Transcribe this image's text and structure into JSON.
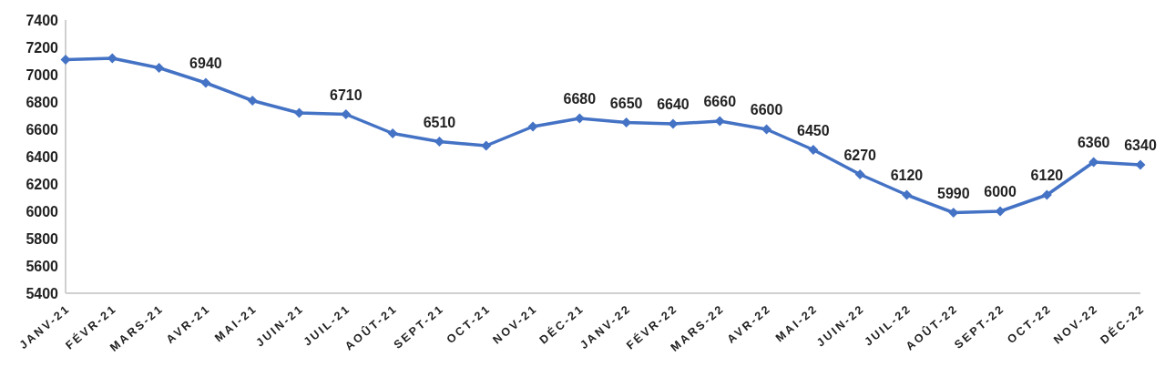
{
  "chart_data": {
    "type": "line",
    "categories": [
      "JANV-21",
      "FÉVR-21",
      "MARS-21",
      "AVR-21",
      "MAI-21",
      "JUIN-21",
      "JUIL-21",
      "AOÛT-21",
      "SEPT-21",
      "OCT-21",
      "NOV-21",
      "DÉC-21",
      "JANV-22",
      "FÉVR-22",
      "MARS-22",
      "AVR-22",
      "MAI-22",
      "JUIN-22",
      "JUIL-22",
      "AOÛT-22",
      "SEPT-22",
      "OCT-22",
      "NOV-22",
      "DÉC-22"
    ],
    "series": [
      {
        "color": "#4472c4",
        "values": [
          7110,
          7120,
          7050,
          6940,
          6810,
          6720,
          6710,
          6570,
          6510,
          6480,
          6620,
          6680,
          6650,
          6640,
          6660,
          6600,
          6450,
          6270,
          6120,
          5990,
          6000,
          6120,
          6360,
          6340
        ],
        "value_labels": [
          null,
          null,
          null,
          "6940",
          null,
          null,
          "6710",
          null,
          "6510",
          null,
          null,
          "6680",
          "6650",
          "6640",
          "6660",
          "6600",
          "6450",
          "6270",
          "6120",
          "5990",
          "6000",
          "6120",
          "6360",
          "6340"
        ]
      }
    ],
    "ylim": [
      5400,
      7400
    ],
    "yticks": [
      5400,
      5600,
      5800,
      6000,
      6200,
      6400,
      6600,
      6800,
      7000,
      7200,
      7400
    ],
    "grid": false,
    "legend": false,
    "marker": "diamond",
    "line_style": "solid"
  }
}
